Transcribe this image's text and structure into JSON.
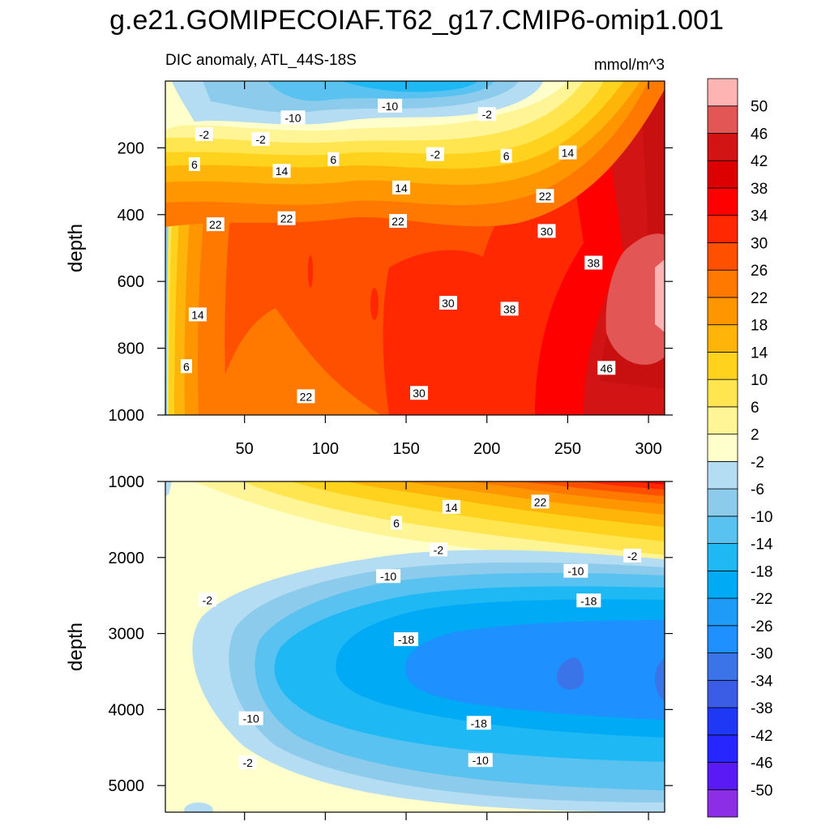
{
  "figure": {
    "title": "g.e21.GOMIPECOIAF.T62_g17.CMIP6-omip1.001",
    "subtitle_left": "DIC anomaly, ATL_44S-18S",
    "subtitle_right": "mmol/m^3"
  },
  "chart_data": [
    {
      "type": "heatmap",
      "panel": "upper",
      "xlabel": "",
      "ylabel": "depth",
      "xlim": [
        1,
        310
      ],
      "ylim": [
        0,
        1000
      ],
      "y_inverted": true,
      "xticks": [
        50,
        100,
        150,
        200,
        250,
        300
      ],
      "yticks": [
        200,
        400,
        600,
        800,
        1000
      ],
      "contour_labels": [
        {
          "text": "-10",
          "x": 80,
          "y": 110
        },
        {
          "text": "-10",
          "x": 140,
          "y": 75
        },
        {
          "text": "-2",
          "x": 200,
          "y": 100
        },
        {
          "text": "-2",
          "x": 25,
          "y": 160
        },
        {
          "text": "-2",
          "x": 60,
          "y": 175
        },
        {
          "text": "-2",
          "x": 168,
          "y": 220
        },
        {
          "text": "6",
          "x": 19,
          "y": 250
        },
        {
          "text": "6",
          "x": 105,
          "y": 235
        },
        {
          "text": "6",
          "x": 212,
          "y": 225
        },
        {
          "text": "14",
          "x": 73,
          "y": 270
        },
        {
          "text": "14",
          "x": 147,
          "y": 320
        },
        {
          "text": "14",
          "x": 250,
          "y": 215
        },
        {
          "text": "22",
          "x": 32,
          "y": 430
        },
        {
          "text": "22",
          "x": 76,
          "y": 412
        },
        {
          "text": "22",
          "x": 145,
          "y": 420
        },
        {
          "text": "22",
          "x": 236,
          "y": 345
        },
        {
          "text": "30",
          "x": 237,
          "y": 450
        },
        {
          "text": "30",
          "x": 176,
          "y": 665
        },
        {
          "text": "30",
          "x": 158,
          "y": 935
        },
        {
          "text": "38",
          "x": 266,
          "y": 545
        },
        {
          "text": "38",
          "x": 214,
          "y": 683
        },
        {
          "text": "14",
          "x": 21,
          "y": 700
        },
        {
          "text": "6",
          "x": 14,
          "y": 855
        },
        {
          "text": "22",
          "x": 88,
          "y": 945
        },
        {
          "text": "46",
          "x": 274,
          "y": 860
        }
      ]
    },
    {
      "type": "heatmap",
      "panel": "lower",
      "xlabel": "",
      "ylabel": "depth",
      "xlim": [
        1,
        310
      ],
      "ylim": [
        1000,
        5350
      ],
      "y_inverted": true,
      "yticks": [
        1000,
        2000,
        3000,
        4000,
        5000
      ],
      "contour_labels": [
        {
          "text": "14",
          "x": 178,
          "y": 1340
        },
        {
          "text": "22",
          "x": 233,
          "y": 1270
        },
        {
          "text": "6",
          "x": 144,
          "y": 1550
        },
        {
          "text": "-2",
          "x": 170,
          "y": 1900
        },
        {
          "text": "-2",
          "x": 290,
          "y": 1980
        },
        {
          "text": "-10",
          "x": 139,
          "y": 2250
        },
        {
          "text": "-10",
          "x": 255,
          "y": 2180
        },
        {
          "text": "-18",
          "x": 263,
          "y": 2570
        },
        {
          "text": "-18",
          "x": 150,
          "y": 3080
        },
        {
          "text": "-2",
          "x": 27,
          "y": 2560
        },
        {
          "text": "-10",
          "x": 54,
          "y": 4120
        },
        {
          "text": "-18",
          "x": 195,
          "y": 4180
        },
        {
          "text": "-10",
          "x": 196,
          "y": 4670
        },
        {
          "text": "-2",
          "x": 52,
          "y": 4700
        }
      ]
    }
  ],
  "colorbar": {
    "labels": [
      "50",
      "46",
      "42",
      "38",
      "34",
      "30",
      "26",
      "22",
      "18",
      "14",
      "10",
      "6",
      "2",
      "-2",
      "-6",
      "-10",
      "-14",
      "-18",
      "-22",
      "-26",
      "-30",
      "-34",
      "-38",
      "-42",
      "-46",
      "-50"
    ],
    "colors": [
      "#8c2ee6",
      "#5a1af5",
      "#2626ff",
      "#1e38f5",
      "#3a5ce6",
      "#3a74e8",
      "#1e90ff",
      "#1e9bf8",
      "#00aaf5",
      "#1eb8f5",
      "#59c2f0",
      "#8ccbeb",
      "#b4dcf2",
      "#ffffcc",
      "#fff596",
      "#ffe650",
      "#ffd21e",
      "#ffb40a",
      "#ff9600",
      "#ff7800",
      "#ff5000",
      "#ff2800",
      "#ff0000",
      "#dc0000",
      "#d21414",
      "#e35656",
      "#ffb4b4"
    ]
  }
}
